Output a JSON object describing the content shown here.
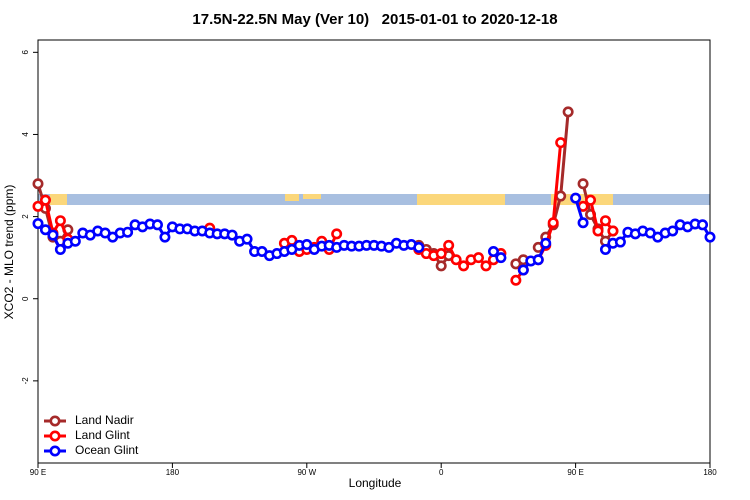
{
  "chart_data": {
    "type": "line",
    "title": "17.5N-22.5N May (Ver 10)   2015-01-01 to 2020-12-18",
    "x_label": "Longitude",
    "y_label": "XCO2 - MLO trend (ppm)",
    "xlim": [
      90,
      540
    ],
    "xticks": [
      {
        "value": 90,
        "label": "90 E"
      },
      180,
      {
        "value": 270,
        "label": "90 W"
      },
      {
        "value": 360,
        "label": "0"
      },
      {
        "value": 450,
        "label": "90 E"
      },
      {
        "value": 540,
        "label": "180"
      }
    ],
    "ylim": [
      -4,
      6.3
    ],
    "yticks": [
      -2,
      0,
      2,
      4,
      6
    ],
    "legend": "bottomleft",
    "x": [
      90,
      95,
      100,
      105,
      110,
      115,
      120,
      125,
      130,
      135,
      140,
      145,
      150,
      155,
      160,
      165,
      170,
      175,
      180,
      185,
      190,
      195,
      200,
      205,
      210,
      215,
      220,
      225,
      230,
      235,
      240,
      245,
      250,
      255,
      260,
      265,
      270,
      275,
      280,
      285,
      290,
      295,
      300,
      305,
      310,
      315,
      320,
      325,
      330,
      335,
      340,
      345,
      350,
      355,
      360,
      365,
      370,
      375,
      380,
      385,
      390,
      395,
      400,
      405,
      410,
      415,
      420,
      425,
      430,
      435,
      440,
      445,
      450,
      455,
      460,
      465,
      470,
      475,
      480,
      485,
      490,
      495,
      500,
      505,
      510,
      515,
      520,
      525,
      530,
      535,
      540
    ],
    "series": [
      {
        "name": "Land Nadir",
        "color": "#a52a2a",
        "values": [
          2.8,
          2.2,
          1.5,
          1.4,
          1.68,
          null,
          null,
          null,
          null,
          null,
          null,
          null,
          null,
          null,
          null,
          null,
          null,
          null,
          null,
          null,
          null,
          null,
          null,
          null,
          null,
          null,
          null,
          null,
          null,
          null,
          null,
          null,
          null,
          null,
          null,
          null,
          null,
          null,
          null,
          null,
          null,
          null,
          null,
          null,
          null,
          null,
          null,
          null,
          null,
          null,
          null,
          1.3,
          1.2,
          1.1,
          0.8,
          1.05,
          null,
          null,
          null,
          null,
          null,
          null,
          null,
          null,
          0.85,
          0.95,
          null,
          1.25,
          1.5,
          1.8,
          2.5,
          4.55,
          null,
          2.8,
          2.05,
          1.7,
          1.4,
          1.65,
          null,
          null,
          null,
          null,
          null,
          null,
          null,
          null,
          null,
          null,
          null,
          null,
          null
        ]
      },
      {
        "name": "Land Glint",
        "color": "#ff0000",
        "values": [
          2.25,
          2.4,
          1.6,
          1.9,
          1.45,
          null,
          null,
          null,
          null,
          null,
          null,
          null,
          null,
          null,
          null,
          null,
          null,
          null,
          null,
          null,
          null,
          null,
          null,
          1.72,
          null,
          null,
          null,
          null,
          null,
          null,
          null,
          null,
          null,
          1.35,
          1.42,
          1.15,
          1.2,
          1.25,
          1.4,
          1.2,
          1.58,
          null,
          null,
          null,
          null,
          null,
          null,
          null,
          null,
          null,
          null,
          1.2,
          1.1,
          1.05,
          1.1,
          1.3,
          0.95,
          0.8,
          0.95,
          1.0,
          0.8,
          0.95,
          1.1,
          null,
          0.45,
          0.7,
          null,
          0.95,
          1.3,
          1.85,
          3.8,
          null,
          null,
          2.25,
          2.4,
          1.65,
          1.9,
          1.65,
          null,
          null,
          null,
          null,
          null,
          null,
          null,
          null,
          null,
          null,
          null,
          null,
          null
        ]
      },
      {
        "name": "Ocean Glint",
        "color": "#0000ff",
        "values": [
          1.83,
          1.68,
          1.55,
          1.2,
          1.35,
          1.4,
          1.6,
          1.55,
          1.65,
          1.6,
          1.5,
          1.6,
          1.62,
          1.8,
          1.75,
          1.82,
          1.8,
          1.5,
          1.75,
          1.7,
          1.7,
          1.65,
          1.65,
          1.6,
          1.58,
          1.58,
          1.55,
          1.4,
          1.45,
          1.15,
          1.15,
          1.05,
          1.1,
          1.15,
          1.2,
          1.3,
          1.32,
          1.2,
          1.28,
          1.3,
          1.25,
          1.3,
          1.28,
          1.28,
          1.3,
          1.3,
          1.28,
          1.25,
          1.35,
          1.3,
          1.32,
          1.25,
          null,
          null,
          null,
          null,
          null,
          null,
          null,
          null,
          null,
          1.15,
          1.0,
          null,
          null,
          0.7,
          0.92,
          0.95,
          1.35,
          null,
          null,
          null,
          2.45,
          1.85,
          null,
          null,
          1.2,
          1.35,
          1.38,
          1.62,
          1.58,
          1.65,
          1.6,
          1.5,
          1.6,
          1.65,
          1.8,
          1.75,
          1.82,
          1.8,
          1.5
        ]
      }
    ]
  }
}
